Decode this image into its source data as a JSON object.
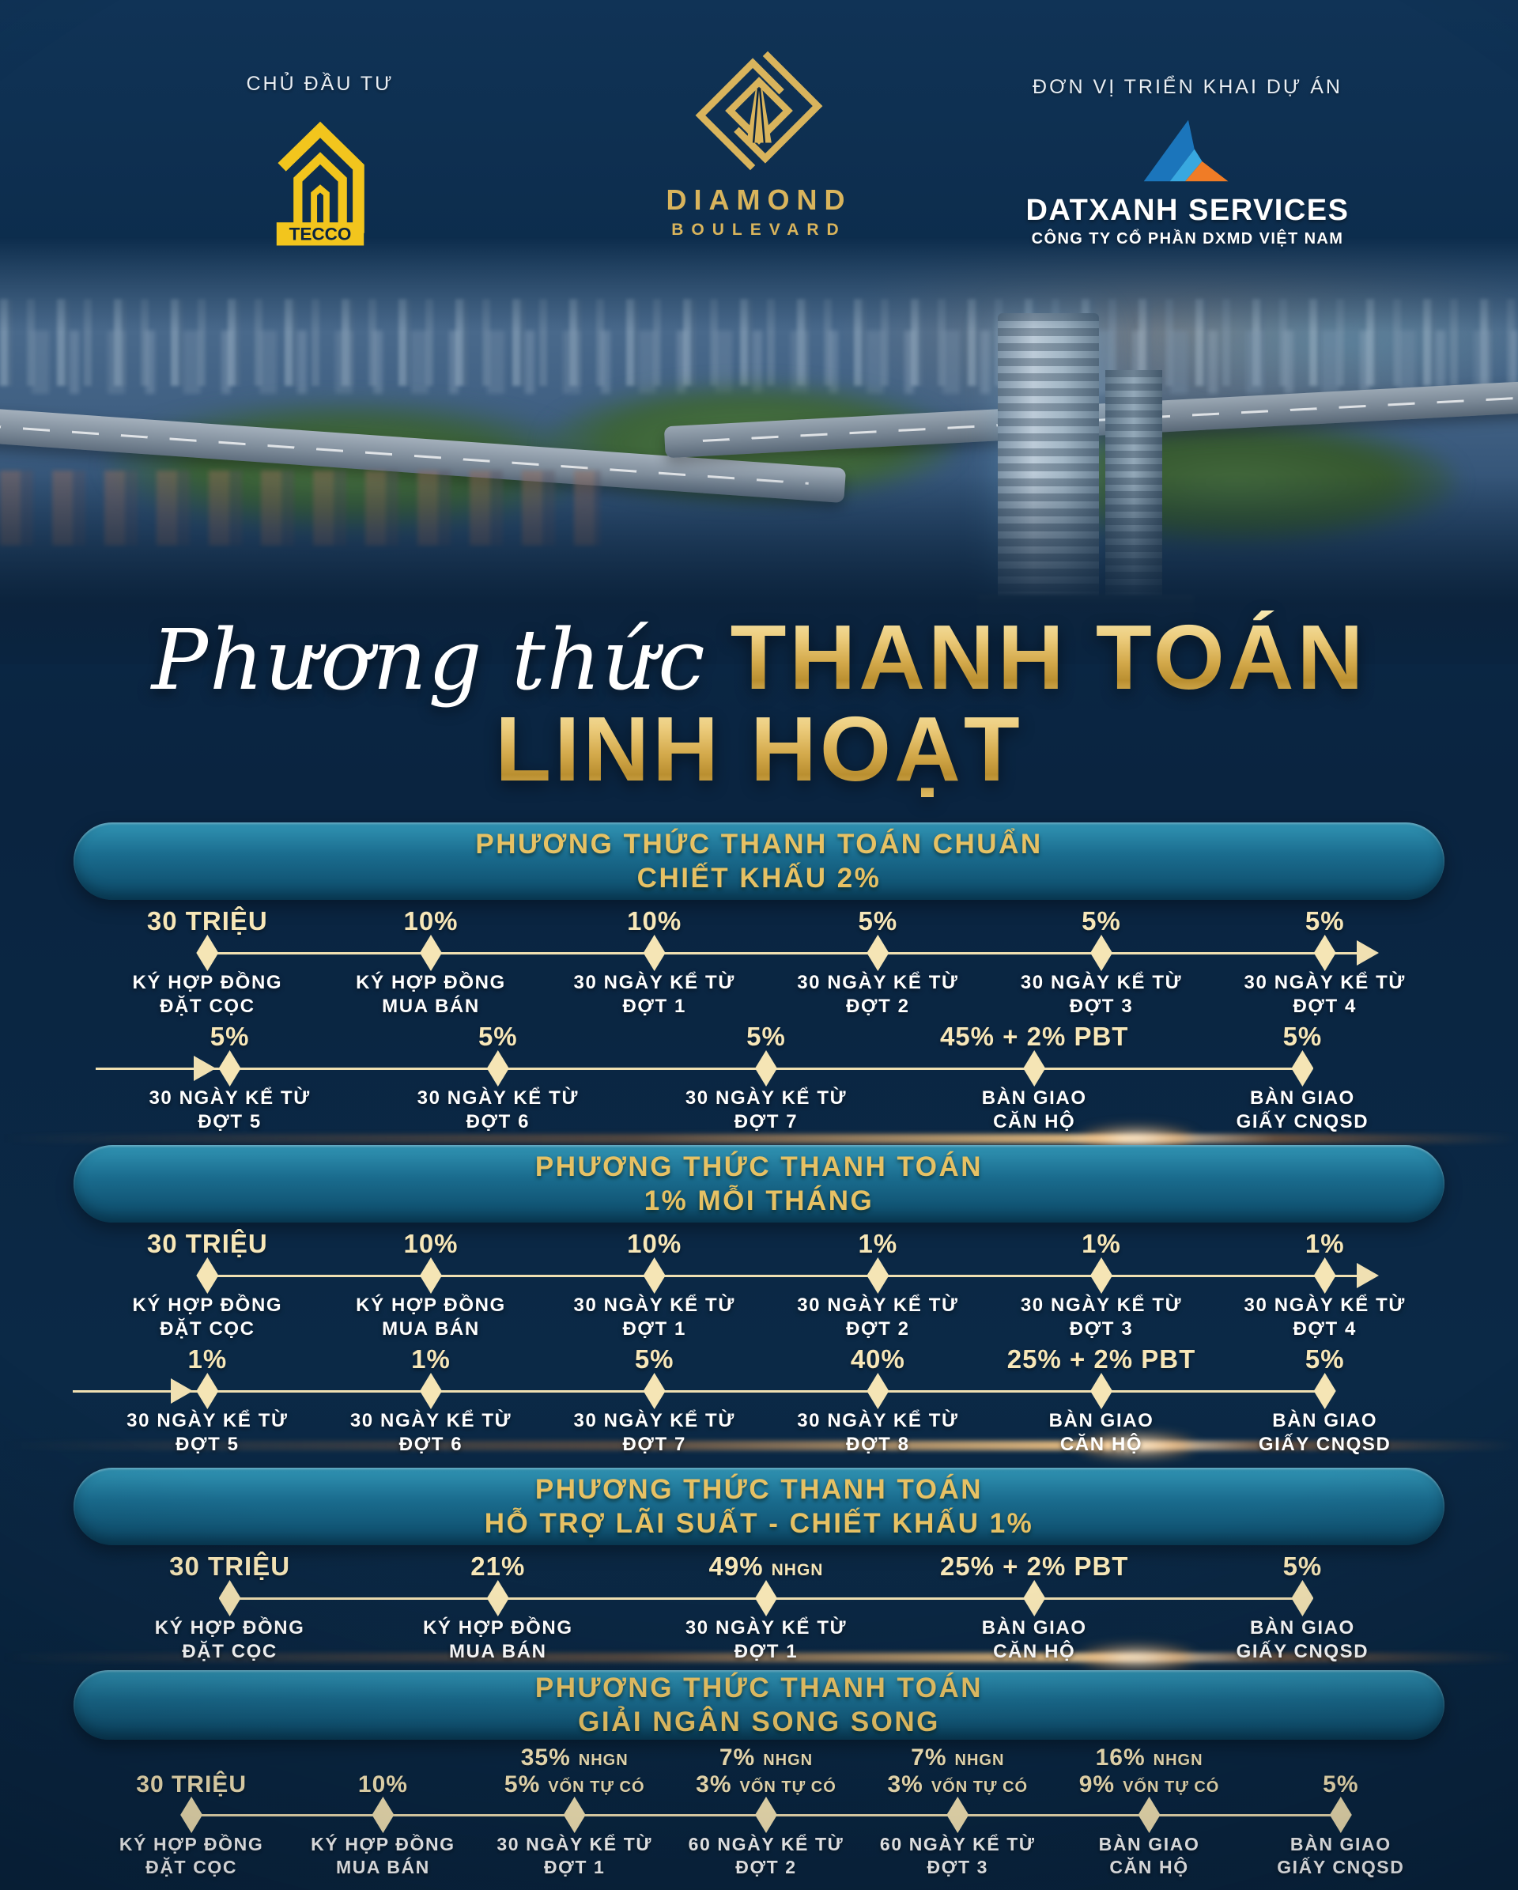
{
  "header": {
    "owner_label": "CHỦ ĐẦU TƯ",
    "tecco_logo_text": "TECCO",
    "diamond_line1": "DIAMOND",
    "diamond_line2": "BOULEVARD",
    "dev_label": "ĐƠN VỊ TRIỂN KHAI DỰ ÁN",
    "datxanh_name": "DATXANH SERVICES",
    "datxanh_sub": "CÔNG TY CỔ PHẦN DXMD VIỆT NAM"
  },
  "title": {
    "script": "Phương thức",
    "line1": "THANH TOÁN",
    "line2": "LINH HOẠT"
  },
  "colors": {
    "gold": "#e6c164",
    "cream": "#f7e7b8",
    "banner_top": "#3194b4",
    "banner_bottom": "#0c4866",
    "navy": "#0a2440",
    "tecco_yellow": "#f2c51d",
    "datxanh_blue": "#1b75bb",
    "datxanh_lightblue": "#38a8e0",
    "datxanh_orange": "#f07c26"
  },
  "sections": [
    {
      "title_line1": "PHƯƠNG THỨC THANH TOÁN CHUẨN",
      "title_line2": "CHIẾT KHẤU 2%",
      "rows": [
        {
          "arrow_end": true,
          "items": [
            {
              "value": [
                {
                  "b": "30 TRIỆU"
                }
              ],
              "label": [
                "KÝ HỢP ĐỒNG",
                "ĐẶT CỌC"
              ]
            },
            {
              "value": [
                {
                  "b": "10%"
                }
              ],
              "label": [
                "KÝ HỢP ĐỒNG",
                "MUA BÁN"
              ]
            },
            {
              "value": [
                {
                  "b": "10%"
                }
              ],
              "label": [
                "30 NGÀY KỂ TỪ",
                "ĐỢT 1"
              ]
            },
            {
              "value": [
                {
                  "b": "5%"
                }
              ],
              "label": [
                "30 NGÀY KỂ TỪ",
                "ĐỢT 2"
              ]
            },
            {
              "value": [
                {
                  "b": "5%"
                }
              ],
              "label": [
                "30 NGÀY KỂ TỪ",
                "ĐỢT 3"
              ]
            },
            {
              "value": [
                {
                  "b": "5%"
                }
              ],
              "label": [
                "30 NGÀY KỂ TỪ",
                "ĐỢT 4"
              ]
            }
          ]
        },
        {
          "arrow_start": true,
          "items": [
            {
              "value": [
                {
                  "b": "5%"
                }
              ],
              "label": [
                "30 NGÀY KỂ TỪ",
                "ĐỢT 5"
              ]
            },
            {
              "value": [
                {
                  "b": "5%"
                }
              ],
              "label": [
                "30 NGÀY KỂ TỪ",
                "ĐỢT 6"
              ]
            },
            {
              "value": [
                {
                  "b": "5%"
                }
              ],
              "label": [
                "30 NGÀY KỂ TỪ",
                "ĐỢT 7"
              ]
            },
            {
              "value": [
                {
                  "b": "45% + 2% PBT"
                }
              ],
              "label": [
                "BÀN GIAO",
                "CĂN HỘ"
              ]
            },
            {
              "value": [
                {
                  "b": "5%"
                }
              ],
              "label": [
                "BÀN GIAO",
                "GIẤY CNQSD"
              ]
            }
          ]
        }
      ]
    },
    {
      "title_line1": "PHƯƠNG THỨC THANH TOÁN",
      "title_line2": "1% MỖI THÁNG",
      "rows": [
        {
          "arrow_end": true,
          "items": [
            {
              "value": [
                {
                  "b": "30 TRIỆU"
                }
              ],
              "label": [
                "KÝ HỢP ĐỒNG",
                "ĐẶT CỌC"
              ]
            },
            {
              "value": [
                {
                  "b": "10%"
                }
              ],
              "label": [
                "KÝ HỢP ĐỒNG",
                "MUA BÁN"
              ]
            },
            {
              "value": [
                {
                  "b": "10%"
                }
              ],
              "label": [
                "30 NGÀY KỂ TỪ",
                "ĐỢT 1"
              ]
            },
            {
              "value": [
                {
                  "b": "1%"
                }
              ],
              "label": [
                "30 NGÀY KỂ TỪ",
                "ĐỢT 2"
              ]
            },
            {
              "value": [
                {
                  "b": "1%"
                }
              ],
              "label": [
                "30 NGÀY KỂ TỪ",
                "ĐỢT 3"
              ]
            },
            {
              "value": [
                {
                  "b": "1%"
                }
              ],
              "label": [
                "30 NGÀY KỂ TỪ",
                "ĐỢT 4"
              ]
            }
          ]
        },
        {
          "arrow_start": true,
          "items": [
            {
              "value": [
                {
                  "b": "1%"
                }
              ],
              "label": [
                "30 NGÀY KỂ TỪ",
                "ĐỢT 5"
              ]
            },
            {
              "value": [
                {
                  "b": "1%"
                }
              ],
              "label": [
                "30 NGÀY KỂ TỪ",
                "ĐỢT 6"
              ]
            },
            {
              "value": [
                {
                  "b": "5%"
                }
              ],
              "label": [
                "30 NGÀY KỂ TỪ",
                "ĐỢT 7"
              ]
            },
            {
              "value": [
                {
                  "b": "40%"
                }
              ],
              "label": [
                "30 NGÀY KỂ TỪ",
                "ĐỢT 8"
              ]
            },
            {
              "value": [
                {
                  "b": "25% + 2% PBT"
                }
              ],
              "label": [
                "BÀN GIAO",
                "CĂN HỘ"
              ]
            },
            {
              "value": [
                {
                  "b": "5%"
                }
              ],
              "label": [
                "BÀN GIAO",
                "GIẤY CNQSD"
              ]
            }
          ]
        }
      ]
    },
    {
      "title_line1": "PHƯƠNG THỨC THANH TOÁN",
      "title_line2": "HỖ TRỢ LÃI SUẤT - CHIẾT KHẤU 1%",
      "rows": [
        {
          "items": [
            {
              "value": [
                {
                  "b": "30 TRIỆU"
                }
              ],
              "label": [
                "KÝ HỢP ĐỒNG",
                "ĐẶT CỌC"
              ]
            },
            {
              "value": [
                {
                  "b": "21%"
                }
              ],
              "label": [
                "KÝ HỢP ĐỒNG",
                "MUA BÁN"
              ]
            },
            {
              "value": [
                {
                  "b": "49%",
                  "s": "NHGN"
                }
              ],
              "label": [
                "30 NGÀY KỂ TỪ",
                "ĐỢT 1"
              ]
            },
            {
              "value": [
                {
                  "b": "25% + 2% PBT"
                }
              ],
              "label": [
                "BÀN GIAO",
                "CĂN HỘ"
              ]
            },
            {
              "value": [
                {
                  "b": "5%"
                }
              ],
              "label": [
                "BÀN GIAO",
                "GIẤY CNQSD"
              ]
            }
          ]
        }
      ]
    },
    {
      "title_line1": "PHƯƠNG THỨC THANH TOÁN",
      "title_line2": "GIẢI NGÂN SONG SONG",
      "rows": [
        {
          "tall": true,
          "items": [
            {
              "value": [
                {
                  "b": "30 TRIỆU"
                }
              ],
              "label": [
                "KÝ HỢP ĐỒNG",
                "ĐẶT CỌC"
              ]
            },
            {
              "value": [
                {
                  "b": "10%"
                }
              ],
              "label": [
                "KÝ HỢP ĐỒNG",
                "MUA BÁN"
              ]
            },
            {
              "value": [
                {
                  "b": "35%",
                  "s": "NHGN"
                },
                {
                  "b": "5%",
                  "s": "VỐN TỰ CÓ"
                }
              ],
              "label": [
                "30 NGÀY KỂ TỪ",
                "ĐỢT 1"
              ]
            },
            {
              "value": [
                {
                  "b": "7%",
                  "s": "NHGN"
                },
                {
                  "b": "3%",
                  "s": "VỐN TỰ CÓ"
                }
              ],
              "label": [
                "60 NGÀY KỂ TỪ",
                "ĐỢT 2"
              ]
            },
            {
              "value": [
                {
                  "b": "7%",
                  "s": "NHGN"
                },
                {
                  "b": "3%",
                  "s": "VỐN TỰ CÓ"
                }
              ],
              "label": [
                "60 NGÀY KỂ TỪ",
                "ĐỢT 3"
              ]
            },
            {
              "value": [
                {
                  "b": "16%",
                  "s": "NHGN"
                },
                {
                  "b": "9%",
                  "s": "VỐN TỰ CÓ"
                }
              ],
              "label": [
                "BÀN GIAO",
                "CĂN HỘ"
              ]
            },
            {
              "value": [
                {
                  "b": "5%"
                }
              ],
              "label": [
                "BÀN GIAO",
                "GIẤY CNQSD"
              ]
            }
          ]
        }
      ]
    }
  ]
}
